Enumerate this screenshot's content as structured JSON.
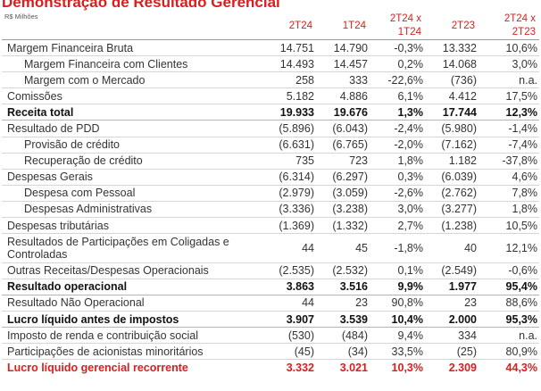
{
  "title": "Demonstração de Resultado Gerencial",
  "unit": "R$ Milhões",
  "headers": [
    "2T24",
    "1T24",
    "2T24 x\n1T24",
    "2T23",
    "2T24 x\n2T23"
  ],
  "rows": [
    {
      "label": "Margem Financeira Bruta",
      "values": [
        "14.751",
        "14.790",
        "-0,3%",
        "13.332",
        "10,6%"
      ]
    },
    {
      "label": "Margem Financeira com Clientes",
      "values": [
        "14.493",
        "14.457",
        "0,2%",
        "14.068",
        "3,0%"
      ]
    },
    {
      "label": "Margem com o Mercado",
      "values": [
        "258",
        "333",
        "-22,6%",
        "(736)",
        "n.a."
      ]
    },
    {
      "label": "Comissões",
      "values": [
        "5.182",
        "4.886",
        "6,1%",
        "4.412",
        "17,5%"
      ]
    },
    {
      "label": "Receita total",
      "values": [
        "19.933",
        "19.676",
        "1,3%",
        "17.744",
        "12,3%"
      ]
    },
    {
      "label": "Resultado de PDD",
      "values": [
        "(5.896)",
        "(6.043)",
        "-2,4%",
        "(5.980)",
        "-1,4%"
      ]
    },
    {
      "label": "Provisão de crédito",
      "values": [
        "(6.631)",
        "(6.765)",
        "-2,0%",
        "(7.162)",
        "-7,4%"
      ]
    },
    {
      "label": "Recuperação de crédito",
      "values": [
        "735",
        "723",
        "1,8%",
        "1.182",
        "-37,8%"
      ]
    },
    {
      "label": "Despesas Gerais",
      "values": [
        "(6.314)",
        "(6.297)",
        "0,3%",
        "(6.039)",
        "4,6%"
      ]
    },
    {
      "label": "Despesa com Pessoal",
      "values": [
        "(2.979)",
        "(3.059)",
        "-2,6%",
        "(2.762)",
        "7,8%"
      ]
    },
    {
      "label": "Despesas Administrativas",
      "values": [
        "(3.336)",
        "(3.238)",
        "3,0%",
        "(3.277)",
        "1,8%"
      ]
    },
    {
      "label": "Despesas tributárias",
      "values": [
        "(1.369)",
        "(1.332)",
        "2,7%",
        "(1.238)",
        "10,5%"
      ]
    },
    {
      "label": "Resultados de Participações em Coligadas e\nControladas",
      "values": [
        "44",
        "45",
        "-1,8%",
        "40",
        "12,1%"
      ]
    },
    {
      "label": "Outras Receitas/Despesas Operacionais",
      "values": [
        "(2.535)",
        "(2.532)",
        "0,1%",
        "(2.549)",
        "-0,6%"
      ]
    },
    {
      "label": "Resultado operacional",
      "values": [
        "3.863",
        "3.516",
        "9,9%",
        "1.977",
        "95,4%"
      ]
    },
    {
      "label": "Resultado Não Operacional",
      "values": [
        "44",
        "23",
        "90,8%",
        "23",
        "88,6%"
      ]
    },
    {
      "label": "Lucro líquido antes de impostos",
      "values": [
        "3.907",
        "3.539",
        "10,4%",
        "2.000",
        "95,3%"
      ]
    },
    {
      "label": "Imposto de renda e contribuição social",
      "values": [
        "(530)",
        "(484)",
        "9,4%",
        "334",
        "n.a."
      ]
    },
    {
      "label": "Participações de acionistas minoritários",
      "values": [
        "(45)",
        "(34)",
        "33,5%",
        "(25)",
        "80,9%"
      ]
    },
    {
      "label": "Lucro líquido gerencial recorrente",
      "values": [
        "3.332",
        "3.021",
        "10,3%",
        "2.309",
        "44,3%"
      ]
    }
  ]
}
